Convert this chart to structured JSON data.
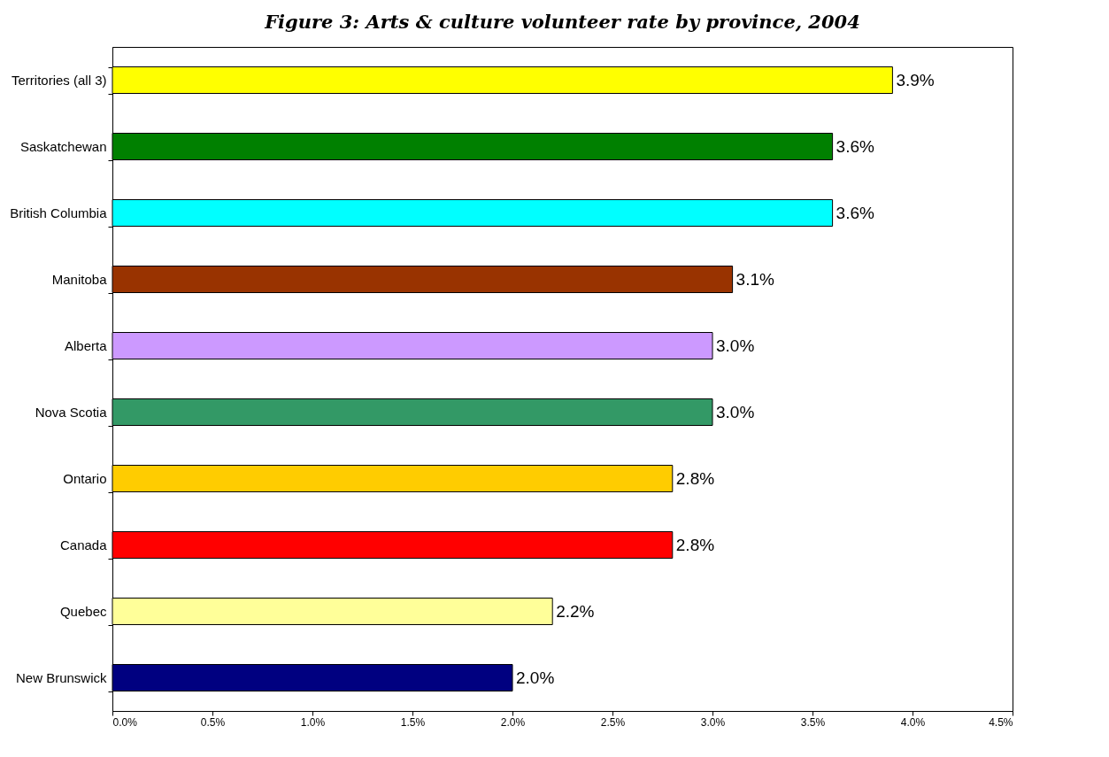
{
  "chart_data": {
    "type": "bar",
    "orientation": "horizontal",
    "title": "Figure 3: Arts & culture volunteer rate by province, 2004",
    "categories": [
      "Territories (all 3)",
      "Saskatchewan",
      "British Columbia",
      "Manitoba",
      "Alberta",
      "Nova Scotia",
      "Ontario",
      "Canada",
      "Quebec",
      "New Brunswick"
    ],
    "values": [
      3.9,
      3.6,
      3.6,
      3.1,
      3.0,
      3.0,
      2.8,
      2.8,
      2.2,
      2.0
    ],
    "value_labels": [
      "3.9%",
      "3.6%",
      "3.6%",
      "3.1%",
      "3.0%",
      "3.0%",
      "2.8%",
      "2.8%",
      "2.2%",
      "2.0%"
    ],
    "colors": [
      "#ffff00",
      "#008000",
      "#00ffff",
      "#993300",
      "#cc99ff",
      "#339966",
      "#ffcc00",
      "#ff0000",
      "#ffff99",
      "#000080"
    ],
    "xlim": [
      0,
      4.5
    ],
    "xticks": [
      {
        "value": 0,
        "label": "0.0%"
      },
      {
        "value": 0.5,
        "label": "0.5%"
      },
      {
        "value": 1,
        "label": "1.0%"
      },
      {
        "value": 1.5,
        "label": "1.5%"
      },
      {
        "value": 2,
        "label": "2.0%"
      },
      {
        "value": 2.5,
        "label": "2.5%"
      },
      {
        "value": 3,
        "label": "3.0%"
      },
      {
        "value": 3.5,
        "label": "3.5%"
      },
      {
        "value": 4,
        "label": "4.0%"
      },
      {
        "value": 4.5,
        "label": "4.5%"
      }
    ],
    "grid": false,
    "legend": false
  }
}
